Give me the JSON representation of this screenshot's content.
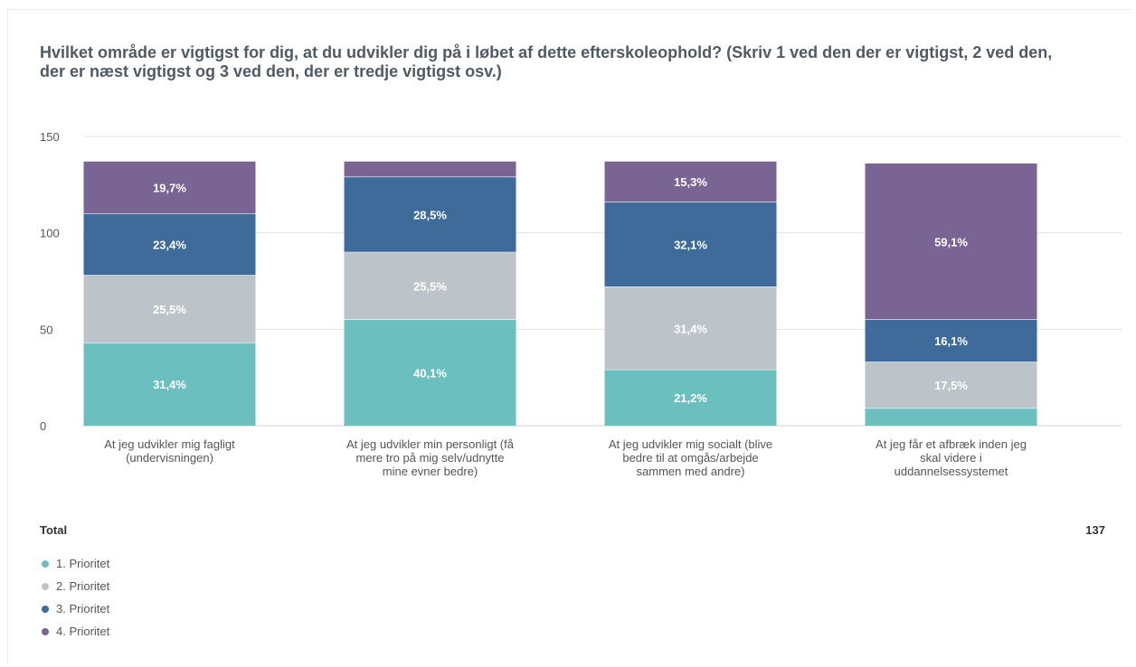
{
  "title": "Hvilket område er vigtigst for dig, at du udvikler dig på i løbet af dette efterskoleophold? (Skriv 1 ved den der er vigtigst, 2 ved den, der er næst vigtigst og 3 ved den, der er tredje vigtigst osv.)",
  "total": {
    "label": "Total",
    "value": "137"
  },
  "colors": {
    "p1": "#6bbfbf",
    "p2": "#bdc4c9",
    "p3": "#3e6b9a",
    "p4": "#7a6494"
  },
  "chart_data": {
    "type": "bar",
    "stacked": true,
    "title": "Hvilket område er vigtigst for dig, at du udvikler dig på i løbet af dette efterskoleophold? (Skriv 1 ved den der er vigtigst, 2 ved den, der er næst vigtigst og 3 ved den, der er tredje vigtigst osv.)",
    "ylim": [
      0,
      150
    ],
    "yticks": [
      0,
      50,
      100,
      150
    ],
    "grid": true,
    "legend_position": "bottom-left",
    "categories": [
      [
        "At jeg udvikler mig fagligt",
        "(undervisningen)"
      ],
      [
        "At jeg udvikler min personligt (få",
        "mere tro på mig selv/udnytte",
        "mine evner bedre)"
      ],
      [
        "At jeg udvikler mig socialt (blive",
        "bedre til at omgås/arbejde",
        "sammen med andre)"
      ],
      [
        "At jeg får et afbræk inden jeg",
        "skal videre i",
        "uddannelsessystemet"
      ]
    ],
    "series": [
      {
        "name": "1. Prioritet",
        "color": "#6bbfbf",
        "values": [
          43,
          55,
          29,
          9
        ],
        "labels": [
          "31,4%",
          "40,1%",
          "21,2%",
          ""
        ]
      },
      {
        "name": "2. Prioritet",
        "color": "#bdc4c9",
        "values": [
          35,
          35,
          43,
          24
        ],
        "labels": [
          "25,5%",
          "25,5%",
          "31,4%",
          "17,5%"
        ]
      },
      {
        "name": "3. Prioritet",
        "color": "#3e6b9a",
        "values": [
          32,
          39,
          44,
          22
        ],
        "labels": [
          "23,4%",
          "28,5%",
          "32,1%",
          "16,1%"
        ]
      },
      {
        "name": "4. Prioritet",
        "color": "#7a6494",
        "values": [
          27,
          8,
          21,
          81
        ],
        "labels": [
          "19,7%",
          "",
          "15,3%",
          "59,1%"
        ]
      }
    ]
  }
}
